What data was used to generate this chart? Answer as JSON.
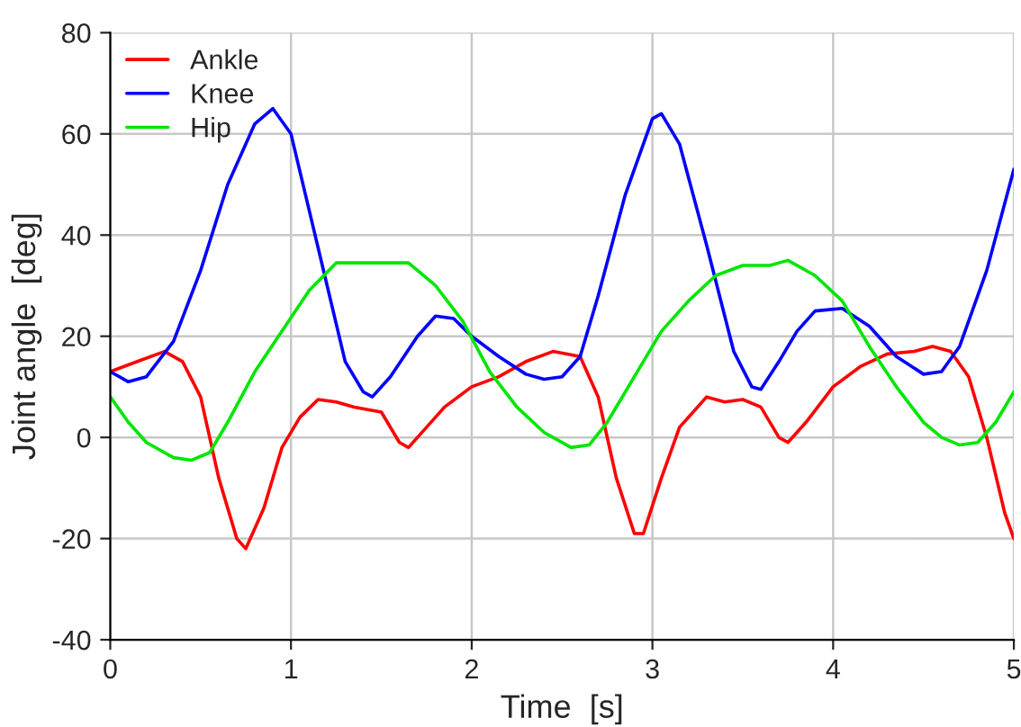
{
  "chart_data": {
    "type": "line",
    "xlabel": "Time  [s]",
    "ylabel": "Joint angle  [deg]",
    "xlim": [
      0,
      5
    ],
    "xticks": [
      0,
      1,
      2,
      3,
      4,
      5
    ],
    "ylim": [
      -40,
      80
    ],
    "yticks": [
      -40,
      -20,
      0,
      20,
      40,
      60,
      80
    ],
    "grid": true,
    "legend": "top left",
    "line_style": "solid",
    "marker": "none",
    "series": [
      {
        "name": "Ankle",
        "color": "#ff0000",
        "x": [
          0,
          0.15,
          0.3,
          0.4,
          0.5,
          0.6,
          0.7,
          0.75,
          0.85,
          0.95,
          1.05,
          1.15,
          1.25,
          1.35,
          1.5,
          1.6,
          1.65,
          1.75,
          1.85,
          2.0,
          2.15,
          2.3,
          2.45,
          2.6,
          2.7,
          2.8,
          2.9,
          2.95,
          3.05,
          3.15,
          3.3,
          3.4,
          3.5,
          3.6,
          3.7,
          3.75,
          3.85,
          4.0,
          4.15,
          4.3,
          4.45,
          4.55,
          4.65,
          4.75,
          4.85,
          4.95,
          5.0
        ],
        "values": [
          13,
          15,
          17,
          15,
          8,
          -8,
          -20,
          -22,
          -14,
          -2,
          4,
          7.5,
          7,
          6,
          5,
          -1,
          -2,
          2,
          6,
          10,
          12,
          15,
          17,
          16,
          8,
          -8,
          -19,
          -19,
          -8,
          2,
          8,
          7,
          7.5,
          6,
          0,
          -1,
          3,
          10,
          14,
          16.5,
          17,
          18,
          17,
          12,
          0,
          -15,
          -20
        ]
      },
      {
        "name": "Knee",
        "color": "#0000ff",
        "x": [
          0,
          0.1,
          0.2,
          0.35,
          0.5,
          0.65,
          0.8,
          0.9,
          1.0,
          1.1,
          1.2,
          1.3,
          1.4,
          1.45,
          1.55,
          1.7,
          1.8,
          1.9,
          2.0,
          2.15,
          2.3,
          2.4,
          2.5,
          2.6,
          2.7,
          2.85,
          3.0,
          3.05,
          3.15,
          3.3,
          3.45,
          3.55,
          3.6,
          3.7,
          3.8,
          3.9,
          4.05,
          4.2,
          4.35,
          4.5,
          4.6,
          4.7,
          4.85,
          5.0
        ],
        "values": [
          13,
          11,
          12,
          19,
          33,
          50,
          62,
          65,
          60,
          45,
          30,
          15,
          9,
          8,
          12,
          20,
          24,
          23.5,
          20,
          16,
          12.5,
          11.5,
          12,
          16,
          28,
          48,
          63,
          64,
          58,
          38,
          17,
          10,
          9.5,
          15,
          21,
          25,
          25.5,
          22,
          16,
          12.5,
          13,
          18,
          33,
          53
        ]
      },
      {
        "name": "Hip",
        "color": "#00e600",
        "x": [
          0,
          0.1,
          0.2,
          0.35,
          0.45,
          0.55,
          0.65,
          0.8,
          0.95,
          1.1,
          1.25,
          1.4,
          1.55,
          1.65,
          1.8,
          1.95,
          2.1,
          2.25,
          2.4,
          2.55,
          2.65,
          2.75,
          2.9,
          3.05,
          3.2,
          3.35,
          3.5,
          3.65,
          3.75,
          3.9,
          4.05,
          4.2,
          4.35,
          4.5,
          4.6,
          4.7,
          4.8,
          4.9,
          5.0
        ],
        "values": [
          8,
          3,
          -1,
          -4,
          -4.5,
          -3,
          3,
          13,
          21,
          29,
          34.5,
          34.5,
          34.5,
          34.5,
          30,
          23,
          13,
          6,
          1,
          -2,
          -1.5,
          3,
          12,
          21,
          27,
          32,
          34,
          34,
          35,
          32,
          27,
          18,
          10,
          3,
          0,
          -1.5,
          -1,
          3,
          9
        ]
      }
    ]
  }
}
